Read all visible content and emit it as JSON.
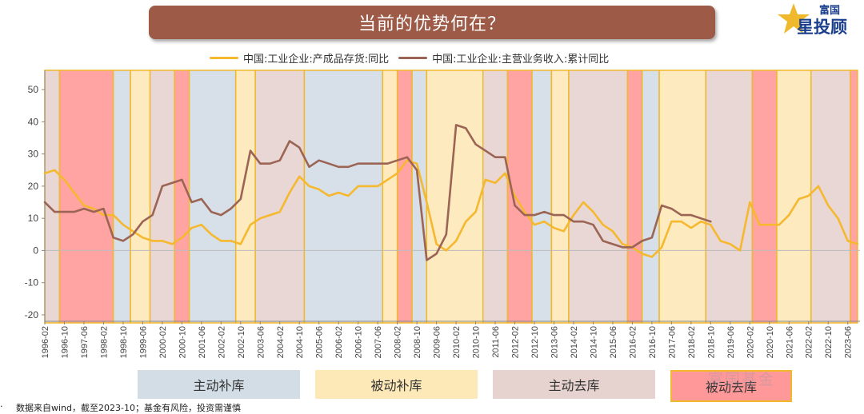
{
  "page_title": "当前的优势何在？",
  "logo": {
    "line1": "富国",
    "line2": "星投顾"
  },
  "watermark": "富国基金",
  "footer": {
    "bullet": "·",
    "text": "数据来自wind，截至2023-10；基金有风险，投资需谨慎"
  },
  "colors": {
    "title_bar": "#9c5a47",
    "series_inventory": "#f5b82e",
    "series_revenue": "#9b6454",
    "phase_active_restock": "#d3dde6",
    "phase_passive_restock": "#fde8b8",
    "phase_active_destock": "#e6d3cf",
    "phase_passive_destock": "#ff9999",
    "phase_border": "#f0b82d"
  },
  "phase_legend": [
    {
      "key": "active_restock",
      "label": "主动补库"
    },
    {
      "key": "passive_restock",
      "label": "被动补库"
    },
    {
      "key": "active_destock",
      "label": "主动去库"
    },
    {
      "key": "passive_destock",
      "label": "被动去库"
    }
  ],
  "chart_data": {
    "type": "line",
    "title": "",
    "xlabel": "",
    "ylabel": "",
    "ylim": [
      -22,
      55
    ],
    "yticks": [
      50,
      40,
      30,
      20,
      10,
      0,
      -10,
      -20
    ],
    "x_tick_labels": [
      "1996-02",
      "1996-10",
      "1997-06",
      "1998-02",
      "1998-10",
      "1999-06",
      "2000-02",
      "2000-10",
      "2001-06",
      "2002-02",
      "2002-10",
      "2003-06",
      "2004-02",
      "2004-10",
      "2005-06",
      "2006-02",
      "2006-10",
      "2007-06",
      "2008-02",
      "2008-10",
      "2009-06",
      "2010-02",
      "2010-10",
      "2011-06",
      "2012-02",
      "2012-10",
      "2013-06",
      "2014-02",
      "2014-10",
      "2015-06",
      "2016-02",
      "2016-10",
      "2017-06",
      "2018-02",
      "2018-10",
      "2019-06",
      "2020-02",
      "2020-10",
      "2021-06",
      "2022-02",
      "2022-10",
      "2023-06"
    ],
    "series": [
      {
        "name": "中国:工业企业:产成品存货:同比",
        "color": "#f5b82e",
        "points": [
          [
            "1996-02",
            24
          ],
          [
            "1996-06",
            25
          ],
          [
            "1996-10",
            22
          ],
          [
            "1997-02",
            18
          ],
          [
            "1997-06",
            14
          ],
          [
            "1997-10",
            13
          ],
          [
            "1998-02",
            11
          ],
          [
            "1998-06",
            11
          ],
          [
            "1998-10",
            8
          ],
          [
            "1999-02",
            6
          ],
          [
            "1999-06",
            4
          ],
          [
            "1999-10",
            3
          ],
          [
            "2000-02",
            3
          ],
          [
            "2000-06",
            2
          ],
          [
            "2000-10",
            4
          ],
          [
            "2001-02",
            7
          ],
          [
            "2001-06",
            8
          ],
          [
            "2001-10",
            5
          ],
          [
            "2002-02",
            3
          ],
          [
            "2002-06",
            3
          ],
          [
            "2002-10",
            2
          ],
          [
            "2003-02",
            8
          ],
          [
            "2003-06",
            10
          ],
          [
            "2003-10",
            11
          ],
          [
            "2004-02",
            12
          ],
          [
            "2004-06",
            18
          ],
          [
            "2004-10",
            23
          ],
          [
            "2005-02",
            20
          ],
          [
            "2005-06",
            19
          ],
          [
            "2005-10",
            17
          ],
          [
            "2006-02",
            18
          ],
          [
            "2006-06",
            17
          ],
          [
            "2006-10",
            20
          ],
          [
            "2007-02",
            20
          ],
          [
            "2007-06",
            20
          ],
          [
            "2007-10",
            22
          ],
          [
            "2008-02",
            24
          ],
          [
            "2008-06",
            28
          ],
          [
            "2008-10",
            27
          ],
          [
            "2009-02",
            15
          ],
          [
            "2009-06",
            2
          ],
          [
            "2009-10",
            0
          ],
          [
            "2010-02",
            3
          ],
          [
            "2010-06",
            9
          ],
          [
            "2010-10",
            12
          ],
          [
            "2011-02",
            22
          ],
          [
            "2011-06",
            21
          ],
          [
            "2011-10",
            24
          ],
          [
            "2012-02",
            17
          ],
          [
            "2012-06",
            12
          ],
          [
            "2012-10",
            8
          ],
          [
            "2013-02",
            9
          ],
          [
            "2013-06",
            7
          ],
          [
            "2013-10",
            6
          ],
          [
            "2014-02",
            11
          ],
          [
            "2014-06",
            15
          ],
          [
            "2014-10",
            12
          ],
          [
            "2015-02",
            8
          ],
          [
            "2015-06",
            6
          ],
          [
            "2015-10",
            2
          ],
          [
            "2016-02",
            1
          ],
          [
            "2016-06",
            -1
          ],
          [
            "2016-10",
            -2
          ],
          [
            "2017-02",
            1
          ],
          [
            "2017-06",
            9
          ],
          [
            "2017-10",
            9
          ],
          [
            "2018-02",
            7
          ],
          [
            "2018-06",
            9
          ],
          [
            "2018-10",
            8
          ],
          [
            "2019-02",
            3
          ],
          [
            "2019-06",
            2
          ],
          [
            "2019-10",
            0
          ],
          [
            "2020-02",
            15
          ],
          [
            "2020-06",
            8
          ],
          [
            "2020-10",
            8
          ],
          [
            "2021-02",
            8
          ],
          [
            "2021-06",
            11
          ],
          [
            "2021-10",
            16
          ],
          [
            "2022-02",
            17
          ],
          [
            "2022-06",
            20
          ],
          [
            "2022-10",
            14
          ],
          [
            "2023-02",
            10
          ],
          [
            "2023-06",
            3
          ],
          [
            "2023-10",
            2
          ]
        ]
      },
      {
        "name": "中国:工业企业:主营业务收入:累计同比",
        "color": "#9b6454",
        "points": [
          [
            "1996-02",
            15
          ],
          [
            "1996-06",
            12
          ],
          [
            "1996-10",
            12
          ],
          [
            "1997-02",
            12
          ],
          [
            "1997-06",
            13
          ],
          [
            "1997-10",
            12
          ],
          [
            "1998-02",
            13
          ],
          [
            "1998-06",
            4
          ],
          [
            "1998-10",
            3
          ],
          [
            "1999-02",
            5
          ],
          [
            "1999-06",
            9
          ],
          [
            "1999-10",
            11
          ],
          [
            "2000-02",
            20
          ],
          [
            "2000-06",
            21
          ],
          [
            "2000-10",
            22
          ],
          [
            "2001-02",
            15
          ],
          [
            "2001-06",
            16
          ],
          [
            "2001-10",
            12
          ],
          [
            "2002-02",
            11
          ],
          [
            "2002-06",
            13
          ],
          [
            "2002-10",
            16
          ],
          [
            "2003-02",
            31
          ],
          [
            "2003-06",
            27
          ],
          [
            "2003-10",
            27
          ],
          [
            "2004-02",
            28
          ],
          [
            "2004-06",
            34
          ],
          [
            "2004-10",
            32
          ],
          [
            "2005-02",
            26
          ],
          [
            "2005-06",
            28
          ],
          [
            "2005-10",
            27
          ],
          [
            "2006-02",
            26
          ],
          [
            "2006-06",
            26
          ],
          [
            "2006-10",
            27
          ],
          [
            "2007-02",
            27
          ],
          [
            "2007-06",
            27
          ],
          [
            "2007-10",
            27
          ],
          [
            "2008-02",
            28
          ],
          [
            "2008-06",
            29
          ],
          [
            "2008-10",
            25
          ],
          [
            "2009-02",
            -3
          ],
          [
            "2009-06",
            -1
          ],
          [
            "2009-10",
            5
          ],
          [
            "2010-02",
            39
          ],
          [
            "2010-06",
            38
          ],
          [
            "2010-10",
            33
          ],
          [
            "2011-02",
            31
          ],
          [
            "2011-06",
            29
          ],
          [
            "2011-10",
            29
          ],
          [
            "2012-02",
            14
          ],
          [
            "2012-06",
            11
          ],
          [
            "2012-10",
            11
          ],
          [
            "2013-02",
            12
          ],
          [
            "2013-06",
            11
          ],
          [
            "2013-10",
            11
          ],
          [
            "2014-02",
            9
          ],
          [
            "2014-06",
            9
          ],
          [
            "2014-10",
            8
          ],
          [
            "2015-02",
            3
          ],
          [
            "2015-06",
            2
          ],
          [
            "2015-10",
            1
          ],
          [
            "2016-02",
            1
          ],
          [
            "2016-06",
            3
          ],
          [
            "2016-10",
            4
          ],
          [
            "2017-02",
            14
          ],
          [
            "2017-06",
            13
          ],
          [
            "2017-10",
            11
          ],
          [
            "2018-02",
            11
          ],
          [
            "2018-06",
            10
          ],
          [
            "2018-10",
            9
          ]
        ]
      }
    ],
    "phases": [
      [
        "1996-02",
        "1996-08",
        "active_destock"
      ],
      [
        "1996-08",
        "1998-06",
        "passive_destock"
      ],
      [
        "1998-06",
        "1999-01",
        "active_restock"
      ],
      [
        "1999-01",
        "1999-09",
        "passive_restock"
      ],
      [
        "1999-09",
        "2000-07",
        "active_destock"
      ],
      [
        "2000-07",
        "2001-01",
        "passive_destock"
      ],
      [
        "2001-01",
        "2002-08",
        "active_restock"
      ],
      [
        "2002-08",
        "2003-04",
        "passive_restock"
      ],
      [
        "2003-04",
        "2004-12",
        "active_destock"
      ],
      [
        "2004-12",
        "2007-08",
        "active_restock"
      ],
      [
        "2007-08",
        "2008-02",
        "passive_restock"
      ],
      [
        "2008-02",
        "2008-08",
        "passive_destock"
      ],
      [
        "2008-08",
        "2009-02",
        "active_restock"
      ],
      [
        "2009-02",
        "2011-01",
        "passive_restock"
      ],
      [
        "2011-01",
        "2011-11",
        "active_destock"
      ],
      [
        "2011-11",
        "2012-09",
        "passive_destock"
      ],
      [
        "2012-09",
        "2013-05",
        "active_restock"
      ],
      [
        "2013-05",
        "2013-12",
        "passive_restock"
      ],
      [
        "2013-12",
        "2015-12",
        "active_destock"
      ],
      [
        "2015-12",
        "2016-06",
        "passive_destock"
      ],
      [
        "2016-06",
        "2017-01",
        "active_restock"
      ],
      [
        "2017-01",
        "2018-08",
        "passive_restock"
      ],
      [
        "2018-08",
        "2020-03",
        "active_destock"
      ],
      [
        "2020-03",
        "2021-01",
        "passive_destock"
      ],
      [
        "2021-01",
        "2022-03",
        "passive_restock"
      ],
      [
        "2022-03",
        "2023-07",
        "active_destock"
      ],
      [
        "2023-07",
        "2023-10",
        "passive_destock"
      ]
    ]
  }
}
